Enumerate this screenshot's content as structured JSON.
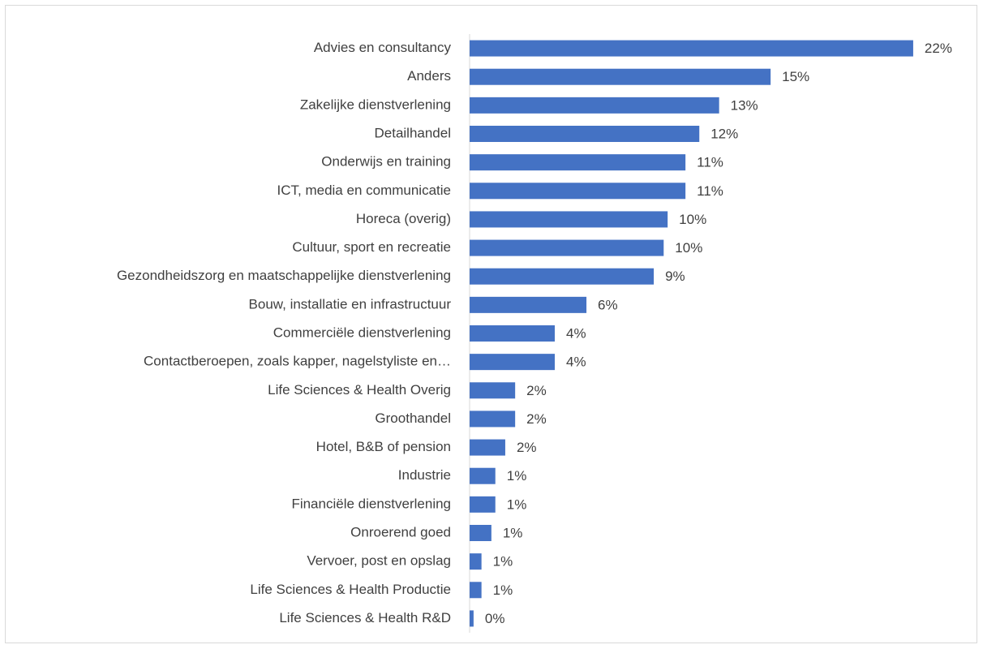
{
  "chart_data": {
    "type": "bar",
    "orientation": "horizontal",
    "categories": [
      "Advies en consultancy",
      "Anders",
      "Zakelijke dienstverlening",
      "Detailhandel",
      "Onderwijs en training",
      "ICT, media en communicatie",
      "Horeca (overig)",
      "Cultuur, sport en recreatie",
      "Gezondheidszorg en maatschappelijke dienstverlening",
      "Bouw, installatie en infrastructuur",
      "Commerciële dienstverlening",
      "Contactberoepen, zoals kapper, nagelstyliste en…",
      "Life Sciences & Health Overig",
      "Groothandel",
      "Hotel, B&B of pension",
      "Industrie",
      "Financiële dienstverlening",
      "Onroerend goed",
      "Vervoer, post en opslag",
      "Life Sciences & Health Productie",
      "Life Sciences & Health R&D"
    ],
    "values": [
      22.4,
      15.2,
      12.6,
      11.6,
      10.9,
      10.9,
      10.0,
      9.8,
      9.3,
      5.9,
      4.3,
      4.3,
      2.3,
      2.3,
      1.8,
      1.3,
      1.3,
      1.1,
      0.6,
      0.6,
      0.2
    ],
    "value_labels": [
      "22%",
      "15%",
      "13%",
      "12%",
      "11%",
      "11%",
      "10%",
      "10%",
      "9%",
      "6%",
      "4%",
      "4%",
      "2%",
      "2%",
      "2%",
      "1%",
      "1%",
      "1%",
      "1%",
      "1%",
      "0%"
    ],
    "color": "#4472c4",
    "xlim": [
      0,
      24
    ]
  }
}
